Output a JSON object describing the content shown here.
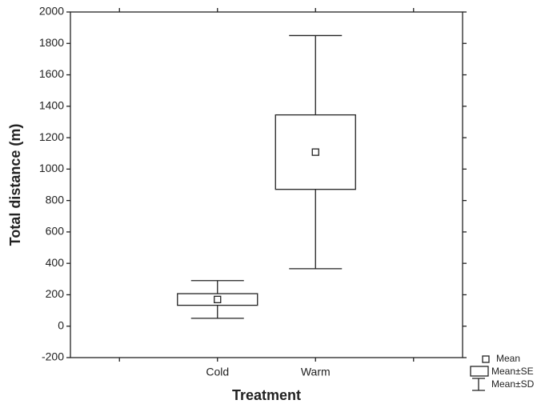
{
  "chart_data": {
    "type": "box",
    "xlabel": "Treatment",
    "ylabel": "Total distance (m)",
    "categories": [
      null,
      "Cold",
      "Warm",
      null
    ],
    "mean": [
      null,
      170,
      1108,
      null
    ],
    "se": [
      null,
      37,
      237,
      null
    ],
    "sd": [
      null,
      120,
      742,
      null
    ],
    "ylim": [
      -200,
      2000
    ],
    "yticks": [
      -200,
      0,
      200,
      400,
      600,
      800,
      1000,
      1200,
      1400,
      1600,
      1800,
      2000
    ],
    "legend": {
      "position": "lower right",
      "entries": [
        "Mean",
        "Mean±SE",
        "Mean±SD"
      ]
    },
    "grid": false
  }
}
